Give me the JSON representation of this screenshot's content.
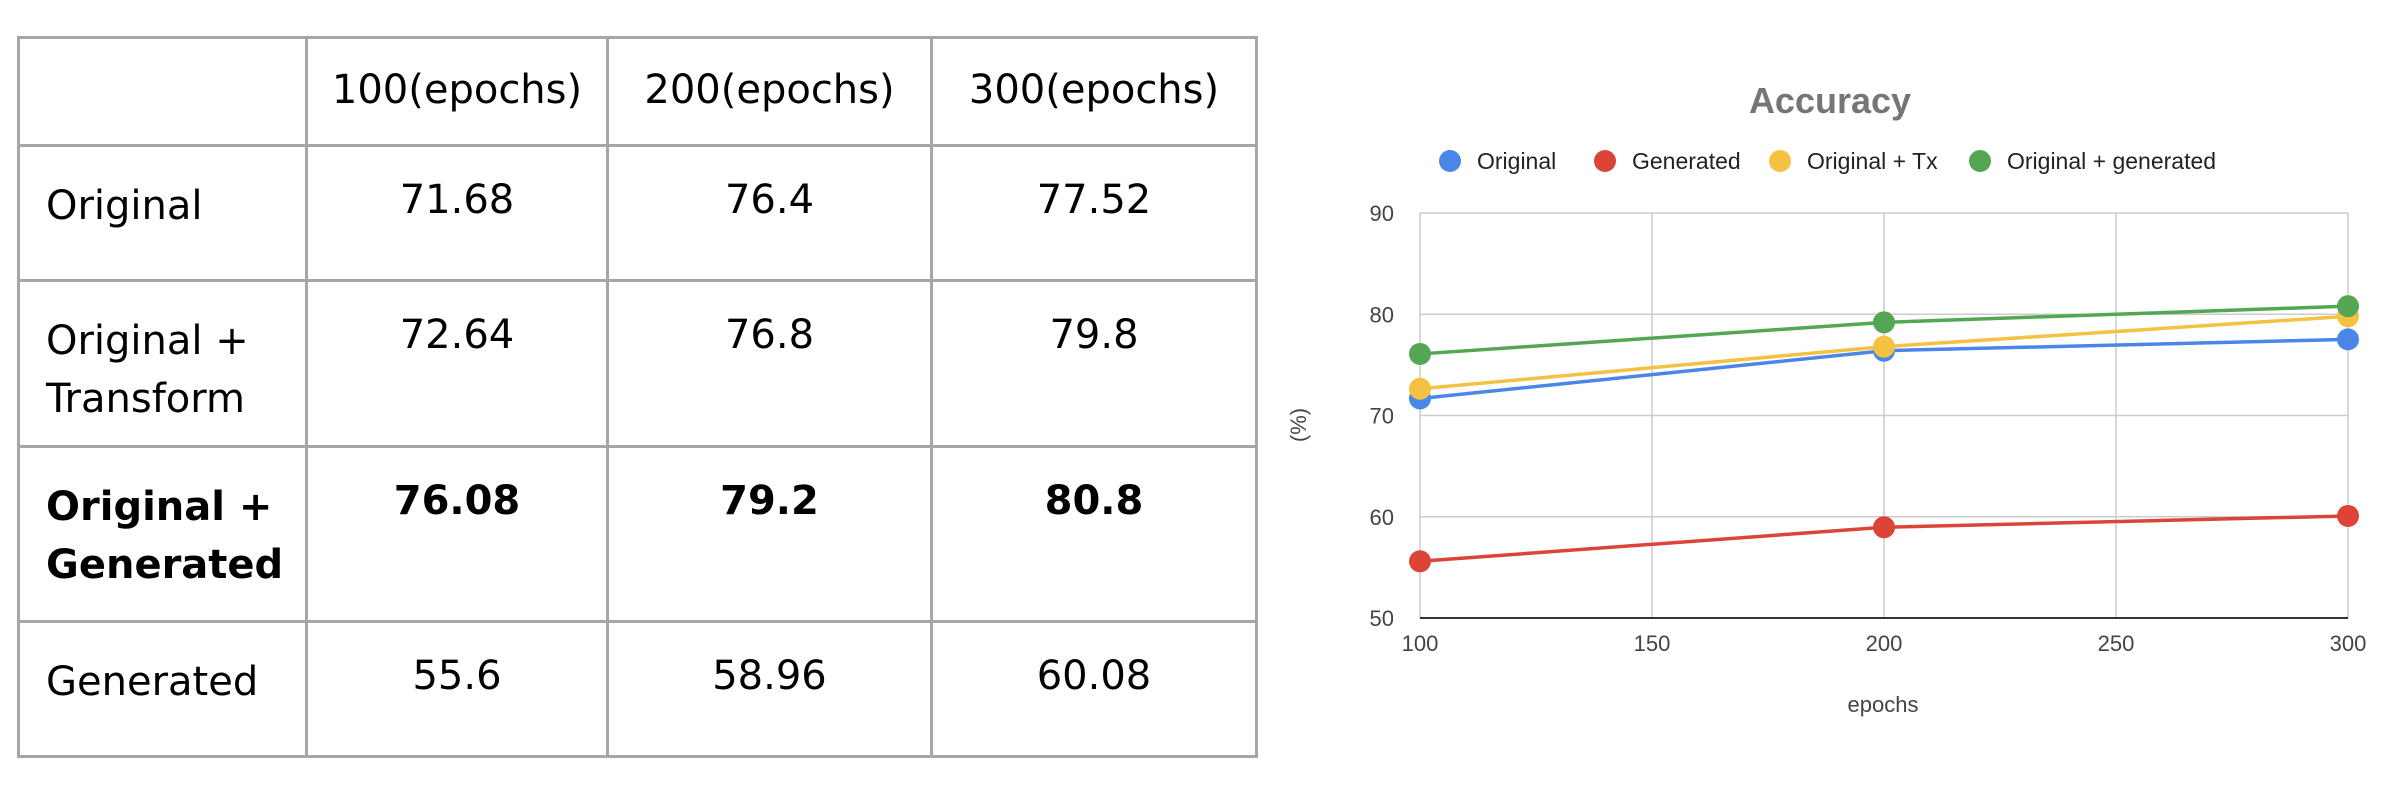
{
  "table": {
    "header": [
      "",
      "100(epochs)",
      "200(epochs)",
      "300(epochs)"
    ],
    "rows": [
      {
        "label": [
          "Original"
        ],
        "values": [
          "71.68",
          "76.4",
          "77.52"
        ],
        "bold": false
      },
      {
        "label": [
          "Original +",
          "Transform"
        ],
        "values": [
          "72.64",
          "76.8",
          "79.8"
        ],
        "bold": false
      },
      {
        "label": [
          "Original +",
          "Generated"
        ],
        "values": [
          "76.08",
          "79.2",
          "80.8"
        ],
        "bold": true
      },
      {
        "label": [
          "Generated"
        ],
        "values": [
          "55.6",
          "58.96",
          "60.08"
        ],
        "bold": false
      }
    ]
  },
  "chart_data": {
    "type": "line",
    "title": "Accuracy",
    "xlabel": "epochs",
    "ylabel": "(%)",
    "x": [
      100,
      200,
      300
    ],
    "xlim": [
      100,
      300
    ],
    "ylim": [
      50,
      90
    ],
    "xticks": [
      100,
      150,
      200,
      250,
      300
    ],
    "yticks": [
      50,
      60,
      70,
      80,
      90
    ],
    "grid": true,
    "legend_position": "top",
    "series": [
      {
        "name": "Original",
        "color": "#4a86e8",
        "values": [
          71.68,
          76.4,
          77.52
        ]
      },
      {
        "name": "Generated",
        "color": "#db4437",
        "values": [
          55.6,
          58.96,
          60.08
        ]
      },
      {
        "name": "Original + Tx",
        "color": "#f4c142",
        "values": [
          72.64,
          76.8,
          79.8
        ]
      },
      {
        "name": "Original + generated",
        "color": "#53a653",
        "values": [
          76.08,
          79.2,
          80.8
        ]
      }
    ]
  }
}
